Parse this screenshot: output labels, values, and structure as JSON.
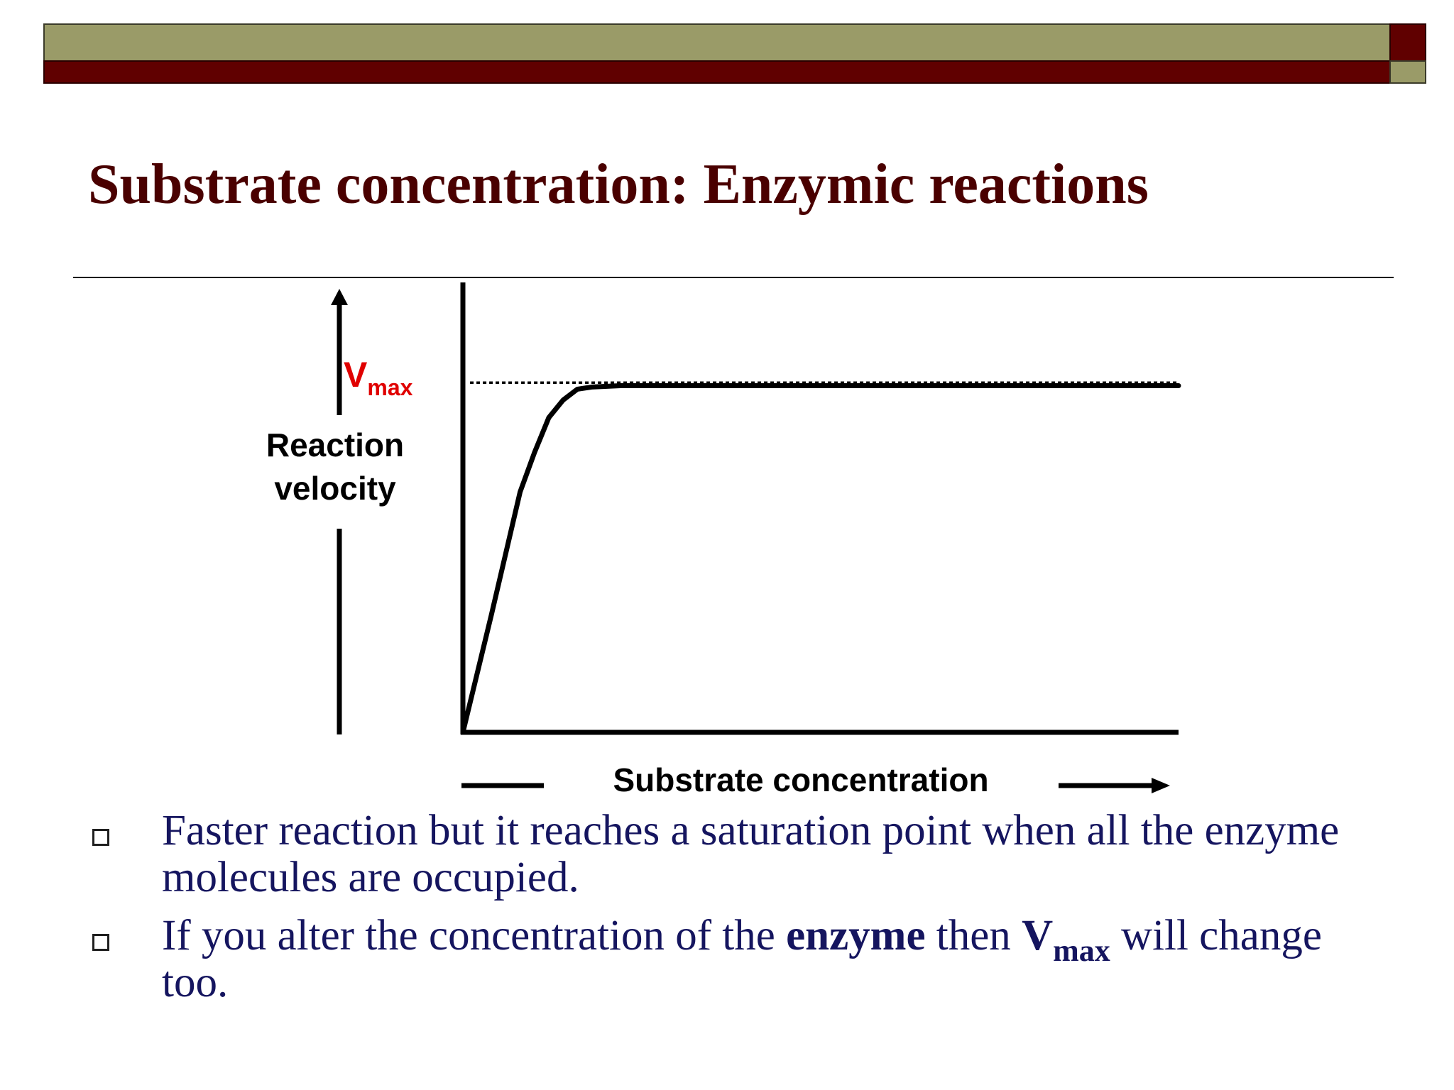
{
  "slide": {
    "title": "Substrate concentration: Enzymic reactions"
  },
  "colors": {
    "header_olive": "#9a9b68",
    "header_maroon": "#600000",
    "title": "#4a0000",
    "body_text": "#15155f",
    "vmax_label": "#e00000",
    "curve": "#000000"
  },
  "chart_data": {
    "type": "line",
    "title": "",
    "xlabel": "Substrate concentration",
    "ylabel": "Reaction velocity",
    "ylabel_lines": [
      "Reaction",
      "velocity"
    ],
    "vmax_label": {
      "main": "V",
      "sub": "max"
    },
    "xlim": [
      0,
      1
    ],
    "ylim": [
      0,
      1
    ],
    "grid": false,
    "legend": "none",
    "axis_ticks": "none",
    "asymptote_y": 0.8,
    "series": [
      {
        "x": [
          0,
          0.04,
          0.08,
          0.1,
          0.12,
          0.14,
          0.16,
          0.18,
          0.22,
          0.3,
          0.5,
          0.7,
          1.0
        ],
        "values": [
          0,
          0.27,
          0.55,
          0.64,
          0.72,
          0.76,
          0.785,
          0.79,
          0.793,
          0.793,
          0.793,
          0.793,
          0.793
        ]
      }
    ]
  },
  "bullets": [
    {
      "text": "Faster reaction but it reaches a saturation point when all the enzyme molecules are occupied."
    },
    {
      "pre": "If you alter the concentration of the ",
      "bold": "enzyme",
      "mid": " then ",
      "vmax_main": "V",
      "vmax_sub": "max",
      "post": " will change too."
    }
  ]
}
